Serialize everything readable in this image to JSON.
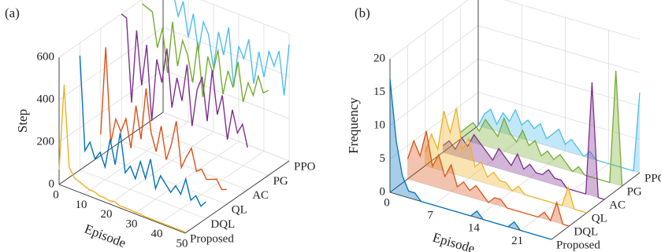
{
  "chart_data": [
    {
      "type": "line3d",
      "panel_label": "(a)",
      "xlabel": "Episode",
      "ylabel": "Step",
      "x": [
        0,
        2,
        4,
        6,
        8,
        10,
        12,
        14,
        16,
        18,
        20,
        22,
        24,
        26,
        28,
        30,
        32,
        34,
        36,
        38,
        40,
        42,
        44,
        46,
        48,
        50
      ],
      "xlim": [
        0,
        50
      ],
      "xticks": [
        0,
        10,
        20,
        30,
        40,
        50
      ],
      "ylim": [
        0,
        600
      ],
      "yticks": [
        0,
        200,
        400,
        600
      ],
      "grid": true,
      "series": [
        {
          "name": "Proposed",
          "color": "#edb120",
          "values": [
            70,
            480,
            100,
            60,
            50,
            40,
            30,
            30,
            20,
            20,
            15,
            20,
            10,
            10,
            10,
            8,
            8,
            5,
            5,
            5,
            5,
            5,
            5,
            5,
            5,
            5
          ]
        },
        {
          "name": "DQL",
          "color": "#0072bd",
          "values": [
            540,
            100,
            150,
            80,
            120,
            60,
            200,
            90,
            250,
            70,
            110,
            60,
            150,
            80,
            180,
            50,
            120,
            90,
            60,
            100,
            70,
            150,
            60,
            90,
            50,
            80
          ]
        },
        {
          "name": "QL",
          "color": "#d95319",
          "values": [
            100,
            520,
            80,
            200,
            150,
            220,
            90,
            300,
            150,
            400,
            200,
            120,
            250,
            100,
            180,
            300,
            90,
            150,
            200,
            100,
            120,
            80,
            90,
            100,
            60,
            70
          ]
        },
        {
          "name": "AC",
          "color": "#7e2f8e",
          "values": [
            600,
            590,
            200,
            550,
            300,
            500,
            150,
            450,
            350,
            520,
            250,
            400,
            300,
            480,
            200,
            380,
            450,
            250,
            500,
            300,
            400,
            200,
            350,
            250,
            300,
            200
          ]
        },
        {
          "name": "PG",
          "color": "#77ac30",
          "values": [
            580,
            570,
            560,
            400,
            500,
            300,
            550,
            350,
            480,
            420,
            300,
            500,
            250,
            450,
            380,
            500,
            300,
            420,
            350,
            480,
            300,
            400,
            350,
            450,
            380,
            400
          ]
        },
        {
          "name": "PPO",
          "color": "#4dbeee",
          "values": [
            600,
            590,
            580,
            480,
            560,
            400,
            520,
            350,
            500,
            450,
            300,
            480,
            380,
            520,
            250,
            450,
            400,
            500,
            300,
            460,
            350,
            480,
            420,
            500,
            300,
            550
          ]
        }
      ]
    },
    {
      "type": "area3d",
      "panel_label": "(b)",
      "xlabel": "Episode",
      "ylabel": "Frequency",
      "x": [
        0,
        1,
        2,
        3,
        4,
        5,
        6,
        7,
        8,
        9,
        10,
        11,
        12,
        13,
        14,
        15,
        16,
        17,
        18,
        19,
        20,
        21,
        22,
        23,
        24,
        25,
        26
      ],
      "xlim": [
        0,
        26
      ],
      "xticks": [
        0,
        7,
        14,
        21
      ],
      "ylim": [
        0,
        20
      ],
      "yticks": [
        0,
        5,
        10,
        15,
        20
      ],
      "grid": true,
      "series": [
        {
          "name": "Proposed",
          "color": "#0072bd",
          "values": [
            17,
            8,
            3,
            1,
            1,
            0,
            0,
            0,
            0,
            0,
            0,
            0,
            0,
            0,
            1,
            0,
            0,
            0,
            0,
            0,
            1,
            0,
            0,
            0,
            0,
            0,
            0
          ]
        },
        {
          "name": "DQL",
          "color": "#d95319",
          "values": [
            3,
            6,
            4,
            8,
            3,
            5,
            2,
            4,
            1,
            2,
            1,
            2,
            1,
            0,
            1,
            1,
            0,
            0,
            0,
            0,
            0,
            0,
            1,
            0,
            3,
            0,
            0
          ]
        },
        {
          "name": "QL",
          "color": "#edb120",
          "values": [
            2,
            5,
            3,
            9,
            6,
            10,
            4,
            6,
            2,
            3,
            1,
            2,
            1,
            1,
            0,
            1,
            0,
            0,
            0,
            0,
            0,
            0,
            0,
            3,
            0,
            0,
            0
          ]
        },
        {
          "name": "AC",
          "color": "#7e2f8e",
          "values": [
            1,
            2,
            1,
            3,
            2,
            4,
            3,
            2,
            1,
            3,
            2,
            1,
            3,
            1,
            2,
            1,
            1,
            2,
            1,
            1,
            0,
            0,
            0,
            0,
            17,
            0,
            0
          ]
        },
        {
          "name": "PG",
          "color": "#77ac30",
          "values": [
            1,
            2,
            3,
            2,
            4,
            3,
            2,
            5,
            3,
            2,
            4,
            2,
            3,
            1,
            2,
            1,
            2,
            1,
            0,
            1,
            0,
            0,
            0,
            0,
            0,
            17,
            0
          ]
        },
        {
          "name": "PPO",
          "color": "#4dbeee",
          "values": [
            0,
            2,
            3,
            1,
            3,
            2,
            4,
            2,
            3,
            2,
            3,
            1,
            2,
            3,
            1,
            2,
            1,
            0,
            1,
            0,
            0,
            0,
            0,
            0,
            0,
            0,
            12
          ]
        }
      ]
    }
  ]
}
